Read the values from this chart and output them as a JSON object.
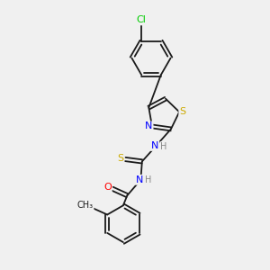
{
  "bg_color": "#f0f0f0",
  "bond_color": "#1a1a1a",
  "atom_colors": {
    "N": "#0000ff",
    "S": "#ccaa00",
    "O": "#ff0000",
    "Cl": "#00cc00",
    "C": "#1a1a1a",
    "H": "#888888"
  },
  "figsize": [
    3.0,
    3.0
  ],
  "dpi": 100
}
